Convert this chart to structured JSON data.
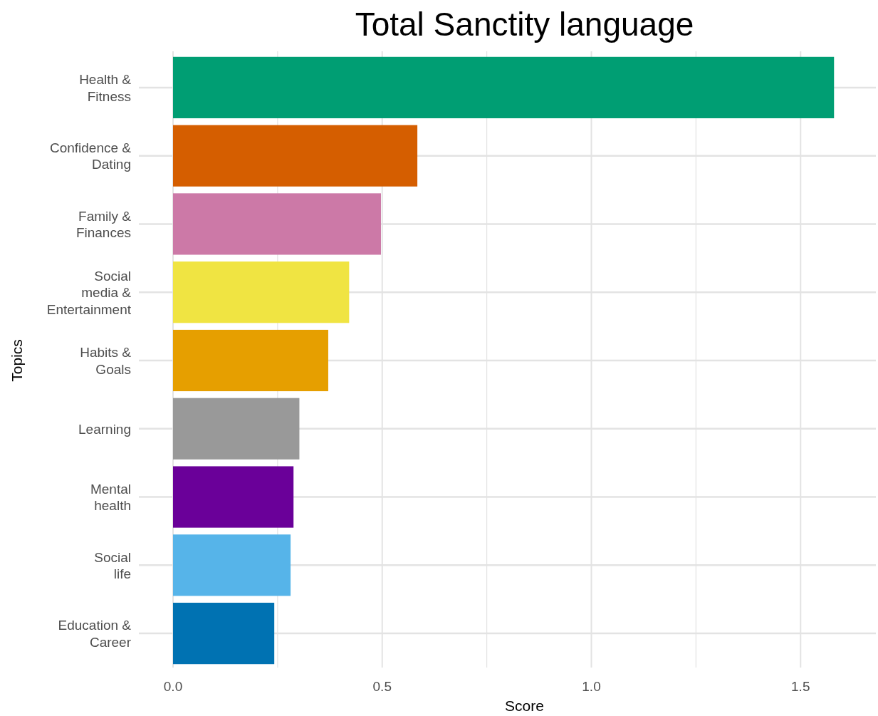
{
  "chart_data": {
    "type": "bar",
    "orientation": "horizontal",
    "title": "Total Sanctity language",
    "xlabel": "Score",
    "ylabel": "Topics",
    "categories": [
      "Health &\nFitness",
      "Confidence &\nDating",
      "Family &\nFinances",
      "Social\nmedia &\nEntertainment",
      "Habits &\nGoals",
      "Learning",
      "Mental\nhealth",
      "Social\nlife",
      "Education &\nCareer"
    ],
    "values": [
      1.58,
      0.584,
      0.497,
      0.421,
      0.371,
      0.302,
      0.288,
      0.281,
      0.242
    ],
    "colors": [
      "#009e73",
      "#d55e00",
      "#cc79a7",
      "#f0e442",
      "#e69f00",
      "#999999",
      "#6a0099",
      "#56b4e9",
      "#0072b2"
    ],
    "xlim": [
      0,
      1.68
    ],
    "xticks": [
      {
        "value": 0,
        "label": "0.0"
      },
      {
        "value": 0.25,
        "label": null
      },
      {
        "value": 0.5,
        "label": "0.5"
      },
      {
        "value": 0.75,
        "label": null
      },
      {
        "value": 1,
        "label": "1.0"
      },
      {
        "value": 1.25,
        "label": null
      },
      {
        "value": 1.5,
        "label": "1.5"
      }
    ],
    "grid": true
  }
}
